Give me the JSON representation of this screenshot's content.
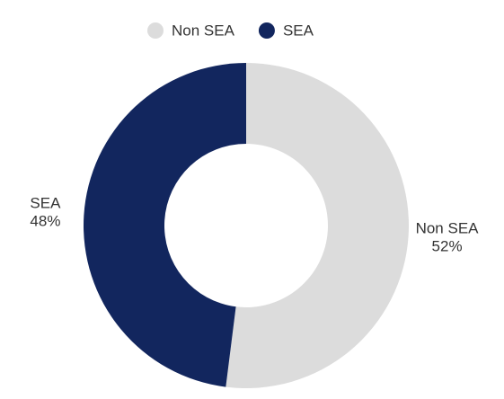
{
  "chart_data": {
    "type": "donut",
    "categories": [
      "Non SEA",
      "SEA"
    ],
    "values": [
      52,
      48
    ],
    "value_labels": [
      "52%",
      "48%"
    ],
    "colors": [
      "#dcdcdc",
      "#12265e"
    ],
    "legend": "top"
  }
}
